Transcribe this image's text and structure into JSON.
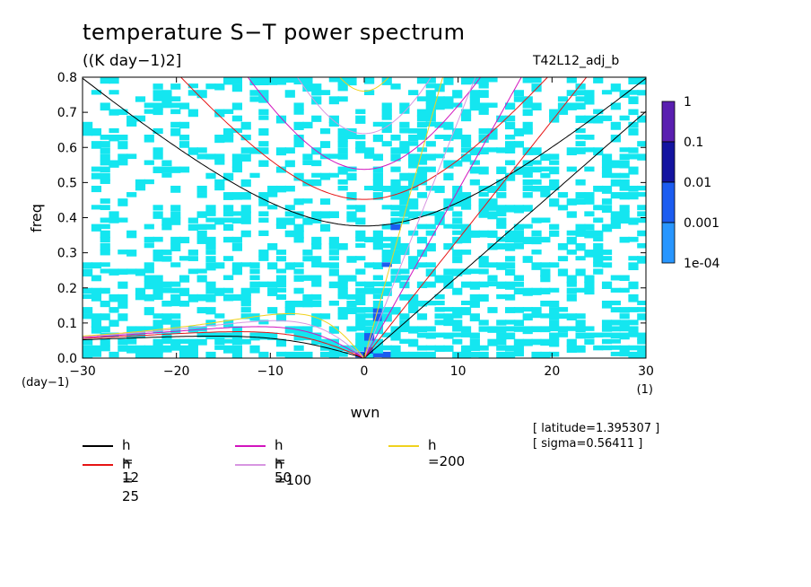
{
  "header": {
    "title": "temperature S−T power spectrum",
    "units": "((K day−1)2]",
    "run_name": "T42L12_adj_b"
  },
  "info": {
    "latitude": "[ latitude=1.395307 ]",
    "sigma": "[ sigma=0.56411 ]"
  },
  "chart_data": {
    "type": "heatmap",
    "title": "temperature S−T power spectrum",
    "xlabel": "wvn",
    "ylabel": "freq",
    "x_unit": "(1)",
    "y_unit": "(day−1)",
    "xlim": [
      -30,
      30
    ],
    "ylim": [
      0,
      0.8
    ],
    "x_ticks": [
      -30,
      -20,
      -10,
      0,
      10,
      20,
      30
    ],
    "x_tick_labels": [
      "−30",
      "−20",
      "−10",
      "0",
      "10",
      "20",
      "30"
    ],
    "y_ticks": [
      0,
      0.1,
      0.2,
      0.3,
      0.4,
      0.5,
      0.6,
      0.7,
      0.8
    ],
    "y_tick_labels": [
      "0.0",
      "0.1",
      "0.2",
      "0.3",
      "0.4",
      "0.5",
      "0.6",
      "0.7",
      "0.8"
    ],
    "colorbar": {
      "levels": [
        "1",
        "0.1",
        "0.01",
        "0.001",
        "1e-04"
      ],
      "colors": [
        "#5a1fb0",
        "#1414a0",
        "#1c5cf0",
        "#2896ff",
        "#14e6f0"
      ]
    },
    "dispersion_curves": [
      {
        "label": "h = 12",
        "color": "#000000"
      },
      {
        "label": "h = 25",
        "color": "#e61414"
      },
      {
        "label": "h = 50",
        "color": "#d214be"
      },
      {
        "label": "h =100",
        "color": "#d796e1"
      },
      {
        "label": "h =200",
        "color": "#f0d21e"
      }
    ]
  }
}
